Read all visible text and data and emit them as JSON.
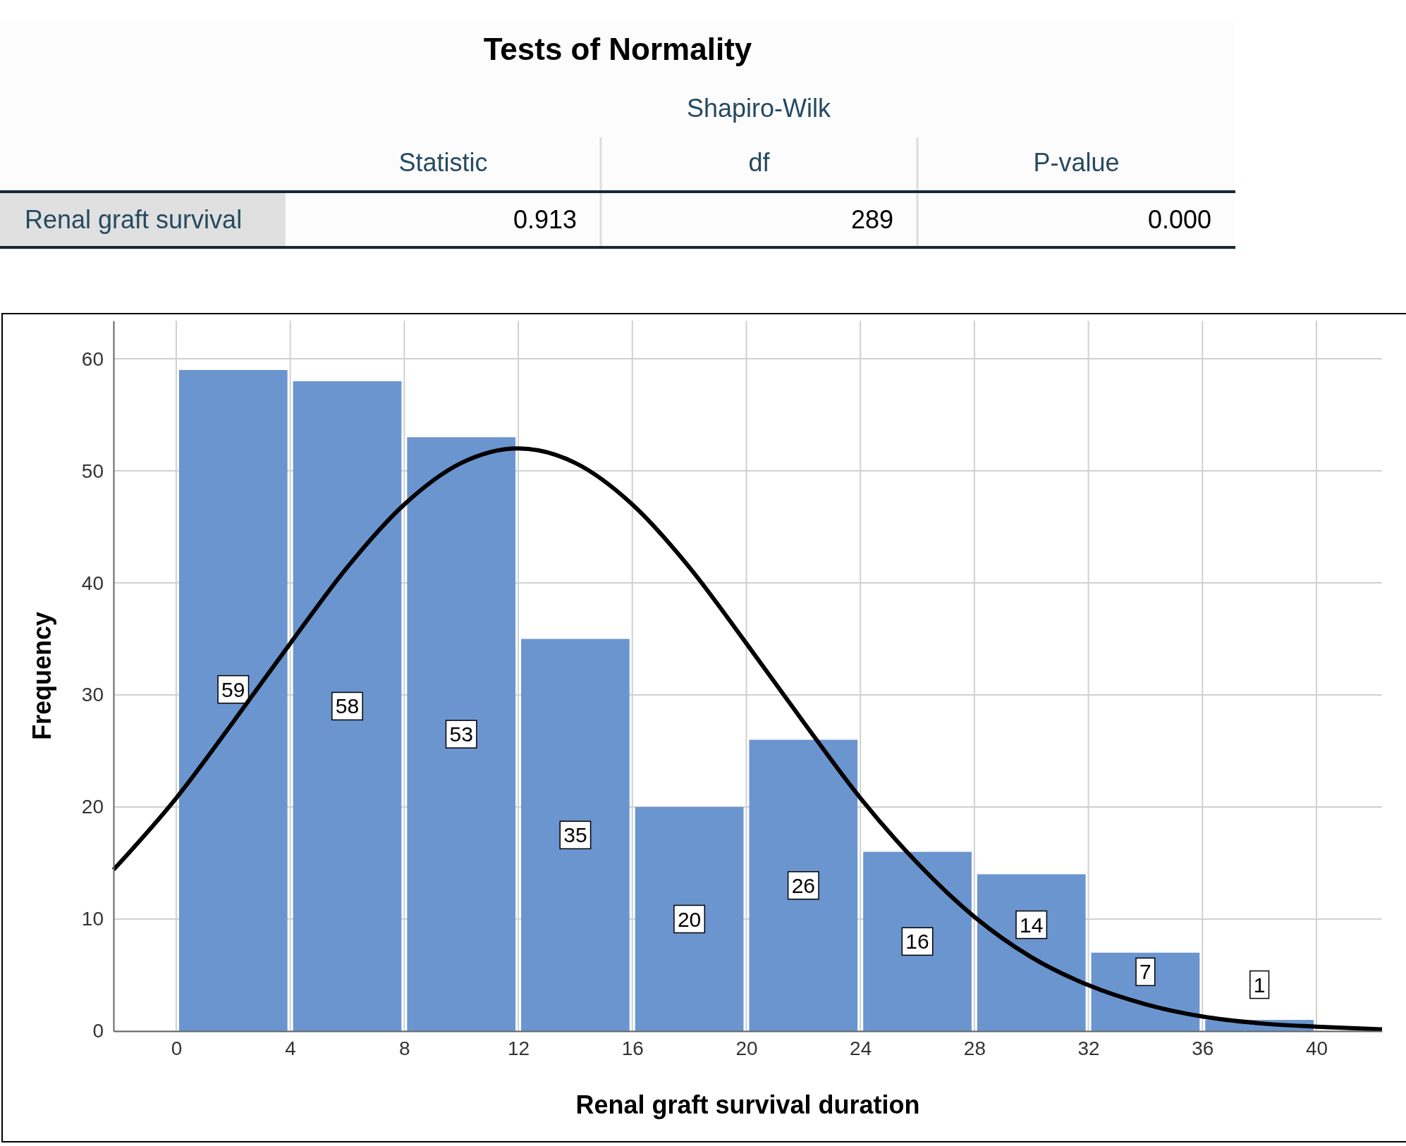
{
  "chart_data": [
    {
      "type": "other",
      "title": "Tests of Normality",
      "subtitle": "Shapiro-Wilk",
      "categories": [
        "Statistic",
        "df",
        "P-value"
      ],
      "y_categories": [
        "Renal graft survival"
      ],
      "annotations": [
        "0.913",
        "289",
        "0.000"
      ]
    },
    {
      "type": "histogram",
      "xlabel": "Renal graft survival duration",
      "ylabel": "Frequency",
      "bins": [
        0,
        4,
        8,
        12,
        16,
        20,
        24,
        28,
        32,
        36,
        40
      ],
      "values": [
        59,
        58,
        53,
        35,
        20,
        26,
        16,
        14,
        7,
        1
      ],
      "color": "#6a95cf",
      "value_labels": [
        "59",
        "58",
        "53",
        "35",
        "20",
        "26",
        "16",
        "14",
        "7",
        "1"
      ],
      "xlim": [
        -2.2,
        42.3
      ],
      "xticks": [
        0,
        4,
        8,
        12,
        16,
        20,
        24,
        28,
        32,
        36,
        40
      ],
      "ylim": [
        0,
        63.4
      ],
      "yticks": [
        0,
        10,
        20,
        30,
        40,
        50,
        60
      ],
      "grid": true,
      "series": [
        {
          "type": "line",
          "color": "#000000",
          "x": [
            -2.2,
            0,
            2,
            4,
            6,
            8,
            10,
            12,
            14,
            16,
            18,
            20,
            22,
            24,
            26,
            28,
            30,
            32,
            34,
            36,
            38,
            40,
            42.3
          ],
          "values": [
            14.4,
            20.8,
            27.6,
            34.6,
            41.4,
            47,
            50.7,
            52,
            50.7,
            47,
            41.4,
            34.6,
            27.6,
            20.8,
            15,
            10.2,
            6.6,
            4.1,
            2.4,
            1.3,
            0.7,
            0.4,
            0.15
          ]
        }
      ]
    }
  ]
}
